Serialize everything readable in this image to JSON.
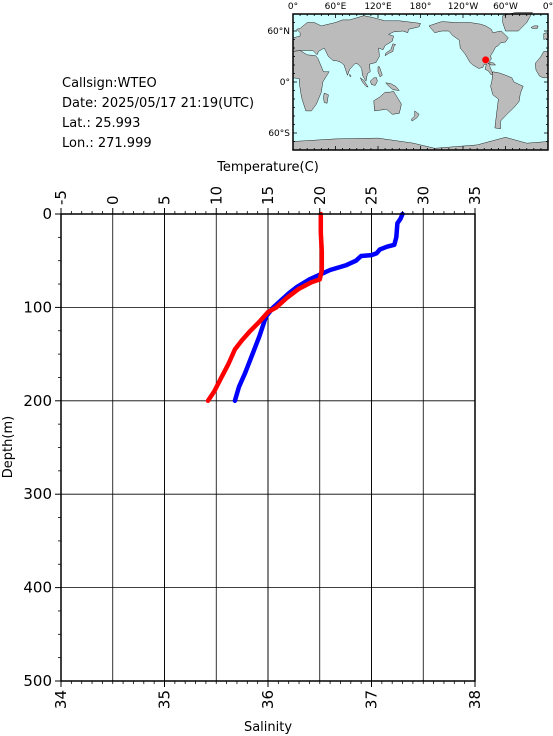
{
  "info": {
    "callsign_line": "Callsign:WTEO",
    "date_line": "Date:  2025/05/17 21:19(UTC)",
    "lat_line": "Lat.:   25.993",
    "lon_line": "Lon.:  271.999"
  },
  "map": {
    "top_labels": [
      "0°",
      "60°E",
      "120°E",
      "180°",
      "120°W",
      "60°W",
      "0°"
    ],
    "left_labels": [
      "60°N",
      "0°",
      "60°S"
    ],
    "ocean_color": "#ccffff",
    "land_color": "#bbbbbb",
    "marker_color": "#ff0000",
    "marker_lat": 25.993,
    "marker_lon": 271.999
  },
  "chart_data": {
    "type": "line",
    "ylabel": "Depth(m)",
    "ylim": [
      500,
      0
    ],
    "yticks": [
      "0",
      "100",
      "200",
      "300",
      "400",
      "500"
    ],
    "top_axis": {
      "label": "Temperature(C)",
      "range": [
        -5,
        35
      ],
      "ticks": [
        "-5",
        "0",
        "5",
        "10",
        "15",
        "20",
        "25",
        "30",
        "35"
      ]
    },
    "bottom_axis": {
      "label": "Salinity",
      "range": [
        34,
        38
      ],
      "ticks": [
        "34",
        "35",
        "36",
        "37",
        "38"
      ]
    },
    "grid": true,
    "series": [
      {
        "color": "#ff0000",
        "axis": "top",
        "points": [
          [
            20.1,
            0
          ],
          [
            20.1,
            20
          ],
          [
            20.2,
            40
          ],
          [
            20.2,
            60
          ],
          [
            20.0,
            70
          ],
          [
            19.2,
            73
          ],
          [
            18.0,
            80
          ],
          [
            16.8,
            90
          ],
          [
            15.8,
            100
          ],
          [
            15.0,
            105
          ],
          [
            14.2,
            115
          ],
          [
            13.3,
            125
          ],
          [
            12.5,
            135
          ],
          [
            11.8,
            145
          ],
          [
            11.2,
            160
          ],
          [
            10.5,
            175
          ],
          [
            9.8,
            190
          ],
          [
            9.2,
            200
          ]
        ]
      },
      {
        "color": "#0000ff",
        "axis": "bottom",
        "points": [
          [
            37.3,
            0
          ],
          [
            37.28,
            5
          ],
          [
            37.25,
            10
          ],
          [
            37.24,
            25
          ],
          [
            37.22,
            33
          ],
          [
            37.15,
            35
          ],
          [
            37.08,
            38
          ],
          [
            37.05,
            42
          ],
          [
            37.0,
            44
          ],
          [
            36.9,
            45
          ],
          [
            36.85,
            50
          ],
          [
            36.75,
            55
          ],
          [
            36.6,
            60
          ],
          [
            36.5,
            65
          ],
          [
            36.4,
            70
          ],
          [
            36.28,
            78
          ],
          [
            36.2,
            85
          ],
          [
            36.12,
            93
          ],
          [
            36.05,
            100
          ],
          [
            35.98,
            110
          ],
          [
            35.92,
            130
          ],
          [
            35.85,
            150
          ],
          [
            35.78,
            170
          ],
          [
            35.72,
            185
          ],
          [
            35.68,
            200
          ]
        ]
      }
    ]
  }
}
